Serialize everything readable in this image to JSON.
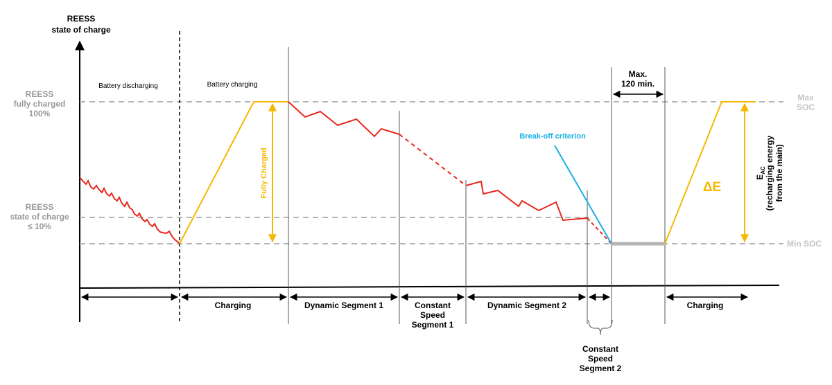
{
  "y_axis_title": [
    "REESS",
    "state of charge"
  ],
  "levels": {
    "full": [
      "REESS",
      "fully charged",
      "100%"
    ],
    "low": [
      "REESS",
      "state of charge",
      "≤ 10%"
    ],
    "max_soc": [
      "Max",
      "SOC"
    ],
    "min_soc": "Min SOC"
  },
  "phase_labels_top": {
    "discharging": "Battery discharging",
    "charging": "Battery charging"
  },
  "fully_charged_label": "Fully Charged",
  "break_off_label": "Break-off criterion",
  "max_time": [
    "Max.",
    "120 min."
  ],
  "delta_e": "ΔE",
  "energy_label": {
    "main": "E",
    "sub": "AC",
    "line2": "(recharging energy",
    "line3": "from the main)"
  },
  "segments": {
    "charging_1": "Charging",
    "dynamic_1": "Dynamic Segment 1",
    "constant_1": [
      "Constant",
      "Speed",
      "Segment 1"
    ],
    "dynamic_2": "Dynamic Segment 2",
    "constant_2": [
      "Constant",
      "Speed",
      "Segment 2"
    ],
    "charging_2": "Charging"
  },
  "colors": {
    "soc_line": "#e8281e",
    "charge_line": "#f5b800",
    "break_off": "#1ab0e6",
    "reference": "#b4b4b4",
    "axis": "#000000",
    "divider": "#555555"
  }
}
